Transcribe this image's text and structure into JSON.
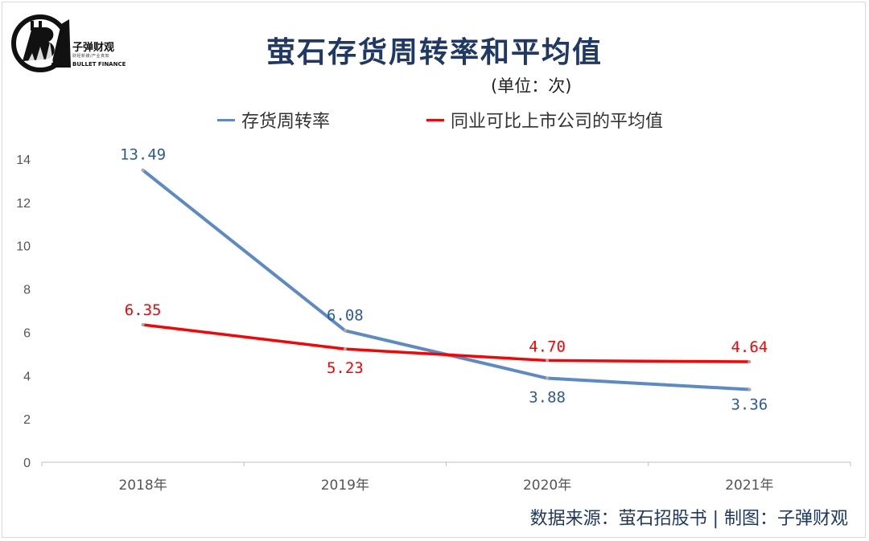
{
  "brand": {
    "name": "子弹财观",
    "tagline": "财经新媒/产业真知",
    "english_name": "BULLET FINANCE"
  },
  "chart_data": {
    "type": "line",
    "title": "萤石存货周转率和平均值",
    "unit_label": "(单位：次)",
    "categories": [
      "2018年",
      "2019年",
      "2020年",
      "2021年"
    ],
    "series": [
      {
        "name": "存货周转率",
        "color": "#5b8ac6",
        "values": [
          13.49,
          6.08,
          3.88,
          3.36
        ],
        "labels": [
          "13.49",
          "6.08",
          "3.88",
          "3.36"
        ]
      },
      {
        "name": "同业可比上市公司的平均值",
        "color": "#ff0000",
        "values": [
          6.35,
          5.23,
          4.7,
          4.64
        ],
        "labels": [
          "6.35",
          "5.23",
          "4.70",
          "4.64"
        ]
      }
    ],
    "ylim": [
      0,
      14
    ],
    "yticks": [
      "0",
      "2",
      "4",
      "6",
      "8",
      "10",
      "12",
      "14"
    ],
    "grid": false,
    "legend": "top"
  },
  "footer": {
    "source": "数据来源：萤石招股书  |  制图：子弹财观"
  }
}
